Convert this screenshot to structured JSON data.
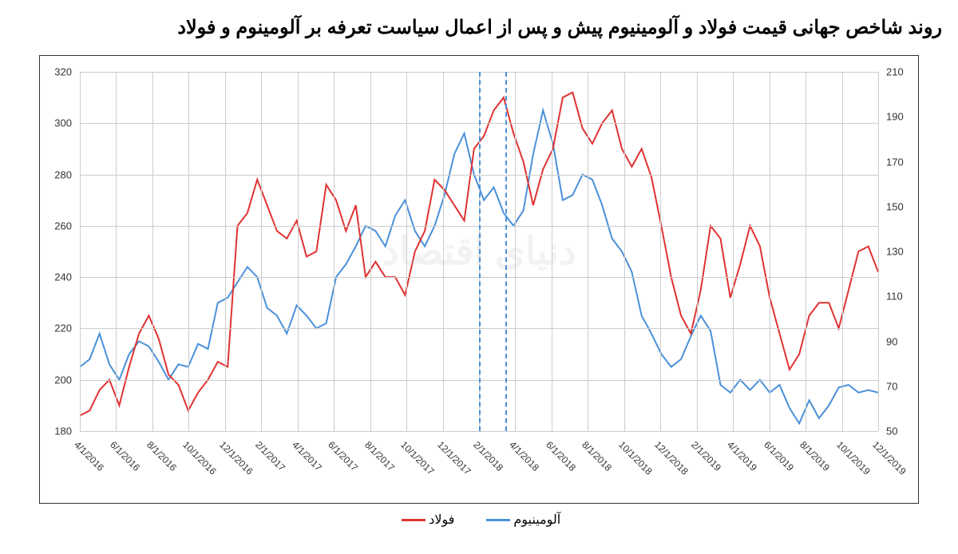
{
  "title": "روند شاخص جهانی قیمت فولاد و آلومینیوم پیش و پس از اعمال سیاست تعرفه بر آلومینوم و فولاد",
  "watermark": "دنیای اقتصاد",
  "legend": {
    "aluminum": "آلومینیوم",
    "steel": "فولاد"
  },
  "chart": {
    "type": "line",
    "left_axis": {
      "min": 180,
      "max": 320,
      "step": 20,
      "ticks": [
        180,
        200,
        220,
        240,
        260,
        280,
        300,
        320
      ]
    },
    "right_axis": {
      "min": 50,
      "max": 210,
      "step": 20,
      "ticks": [
        50,
        70,
        90,
        110,
        130,
        150,
        170,
        190,
        210
      ]
    },
    "x_labels": [
      "4/1/2016",
      "6/1/2016",
      "8/1/2016",
      "10/1/2016",
      "12/1/2016",
      "2/1/2017",
      "4/1/2017",
      "6/1/2017",
      "8/1/2017",
      "10/1/2017",
      "12/1/2017",
      "2/1/2018",
      "4/1/2018",
      "6/1/2018",
      "8/1/2018",
      "10/1/2018",
      "12/1/2018",
      "2/1/2019",
      "4/1/2019",
      "6/1/2019",
      "8/1/2019",
      "10/1/2019",
      "12/1/2019"
    ],
    "x_count": 46,
    "event_lines": [
      22.5,
      24
    ],
    "colors": {
      "aluminum": "#4a90d9",
      "steel": "#e03232",
      "grid": "#cccccc",
      "event": "#4a90d9",
      "background": "#ffffff"
    },
    "line_width": 2,
    "aluminum": [
      205,
      208,
      218,
      206,
      200,
      210,
      215,
      213,
      207,
      200,
      206,
      205,
      214,
      212,
      230,
      232,
      238,
      244,
      240,
      228,
      225,
      218,
      229,
      225,
      220,
      222,
      240,
      245,
      252,
      260,
      258,
      252,
      264,
      270,
      258,
      252,
      260,
      272,
      288,
      296,
      280,
      270,
      275,
      265,
      260,
      266,
      288,
      305,
      292,
      270,
      272,
      280,
      278,
      268,
      255,
      250,
      242,
      225,
      218,
      210,
      205,
      208,
      217,
      225,
      219,
      198,
      195,
      200,
      196,
      200,
      195,
      198,
      189,
      183,
      192,
      185,
      190,
      197,
      198,
      195,
      196,
      195
    ],
    "steel": [
      186,
      188,
      196,
      200,
      190,
      205,
      218,
      225,
      216,
      202,
      198,
      188,
      195,
      200,
      207,
      205,
      260,
      265,
      278,
      268,
      258,
      255,
      262,
      248,
      250,
      276,
      270,
      258,
      268,
      240,
      246,
      240,
      240,
      233,
      250,
      258,
      278,
      274,
      268,
      262,
      290,
      295,
      305,
      310,
      296,
      285,
      268,
      282,
      290,
      310,
      312,
      298,
      292,
      300,
      305,
      290,
      283,
      290,
      279,
      260,
      240,
      225,
      218,
      235,
      260,
      255,
      232,
      245,
      260,
      252,
      232,
      218,
      204,
      210,
      225,
      230,
      230,
      220,
      235,
      250,
      252,
      242
    ]
  }
}
